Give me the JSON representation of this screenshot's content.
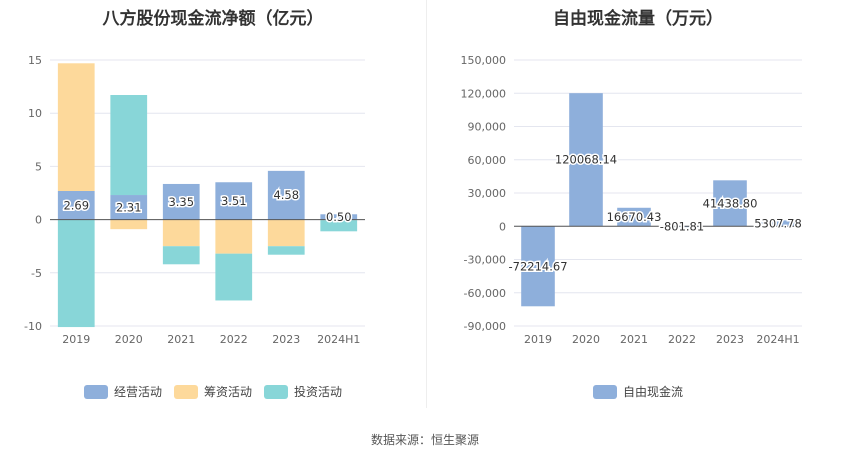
{
  "source": "数据来源：恒生聚源",
  "chart_data": [
    {
      "type": "bar",
      "stacked": true,
      "title": "八方股份现金流净额（亿元）",
      "categories": [
        "2019",
        "2020",
        "2021",
        "2022",
        "2023",
        "2024H1"
      ],
      "series": [
        {
          "name": "经营活动",
          "color": "#8eafdb",
          "values": [
            2.69,
            2.31,
            3.35,
            3.51,
            4.58,
            0.5
          ],
          "labels": [
            "2.69",
            "2.31",
            "3.35",
            "3.51",
            "4.58",
            "0.50"
          ]
        },
        {
          "name": "筹资活动",
          "color": "#fdd99b",
          "values": [
            12.0,
            -0.9,
            -2.5,
            -3.2,
            -2.5,
            -0.05
          ]
        },
        {
          "name": "投资活动",
          "color": "#88d6d8",
          "values": [
            -10.1,
            9.4,
            -1.7,
            -4.4,
            -0.8,
            -1.05
          ]
        }
      ],
      "ylim": [
        -10,
        15
      ],
      "yticks": [
        -10,
        -5,
        0,
        5,
        10,
        15
      ],
      "ytick_labels": [
        "-10",
        "-5",
        "0",
        "5",
        "10",
        "15"
      ]
    },
    {
      "type": "bar",
      "title": "自由现金流量（万元）",
      "categories": [
        "2019",
        "2020",
        "2021",
        "2022",
        "2023",
        "2024H1"
      ],
      "series": [
        {
          "name": "自由现金流",
          "color": "#8eafdb",
          "values": [
            -72214.67,
            120068.14,
            16670.43,
            -801.81,
            41438.8,
            5307.78
          ],
          "labels": [
            "-72214.67",
            "120068.14",
            "16670.43",
            "-801.81",
            "41438.80",
            "5307.78"
          ]
        }
      ],
      "ylim": [
        -90000,
        150000
      ],
      "yticks": [
        -90000,
        -60000,
        -30000,
        0,
        30000,
        60000,
        90000,
        120000,
        150000
      ],
      "ytick_labels": [
        "-90,000",
        "-60,000",
        "-30,000",
        "0",
        "30,000",
        "60,000",
        "90,000",
        "120,000",
        "150,000"
      ]
    }
  ]
}
